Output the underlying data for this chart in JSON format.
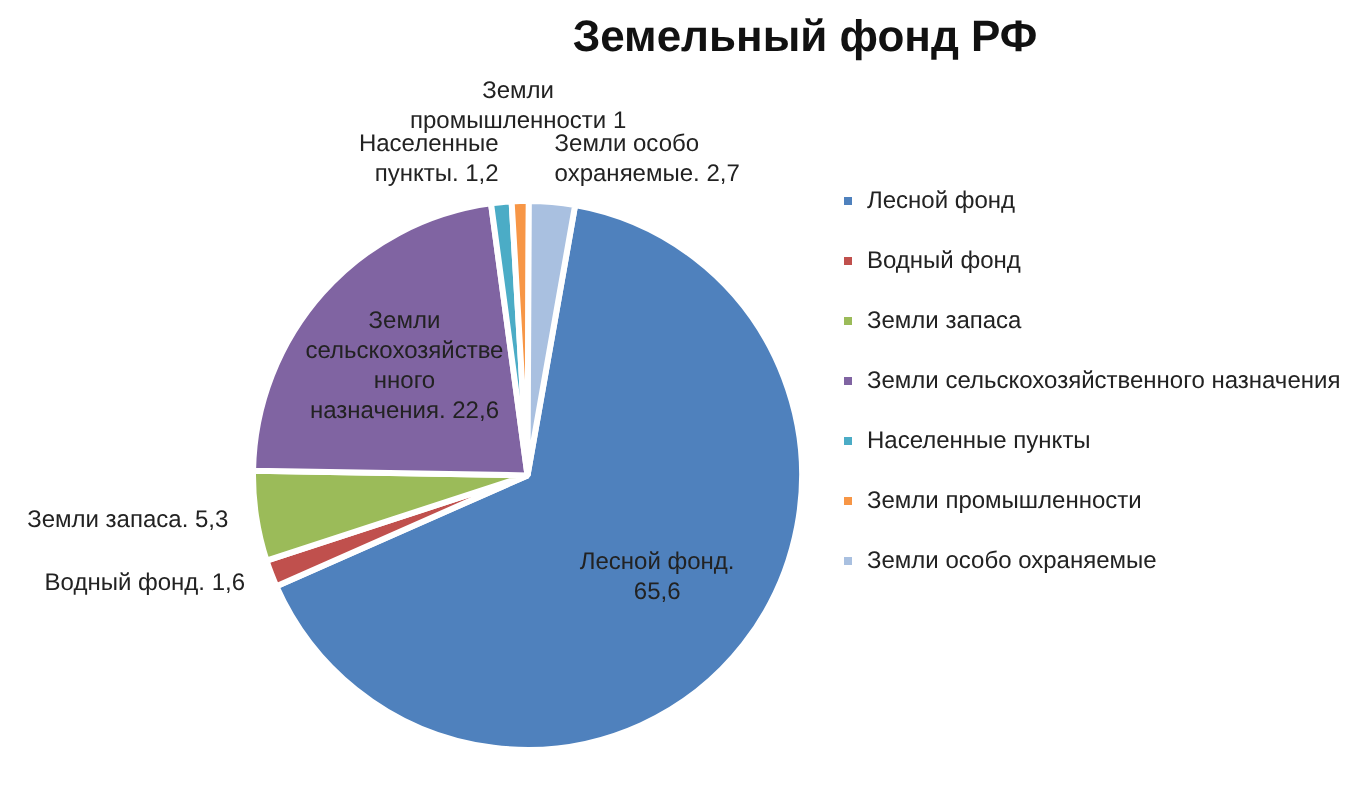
{
  "chart_data": {
    "type": "pie",
    "title": "Земельный фонд РФ",
    "categories": [
      "Лесной фонд",
      "Водный фонд",
      "Земли запаса",
      "Земли сельскохозяйственного назначения",
      "Населенные пункты",
      "Земли промышленности",
      "Земли особо охраняемые"
    ],
    "values": [
      65.6,
      1.6,
      5.3,
      22.6,
      1.2,
      1,
      2.7
    ],
    "colors": [
      "#4f81bd",
      "#c0504d",
      "#9bbb59",
      "#8064a2",
      "#4bacc6",
      "#f79646",
      "#a9c0e0"
    ],
    "value_labels": [
      "Лесной фонд. 65,6",
      "Водный фонд. 1,6",
      "Земли запаса. 5,3",
      "Земли сельскохозяйственного назначения. 22,6",
      "Населенные пункты. 1,2",
      "Земли промышленности 1",
      "Земли особо охраняемые. 2,7"
    ],
    "legend": "right"
  }
}
